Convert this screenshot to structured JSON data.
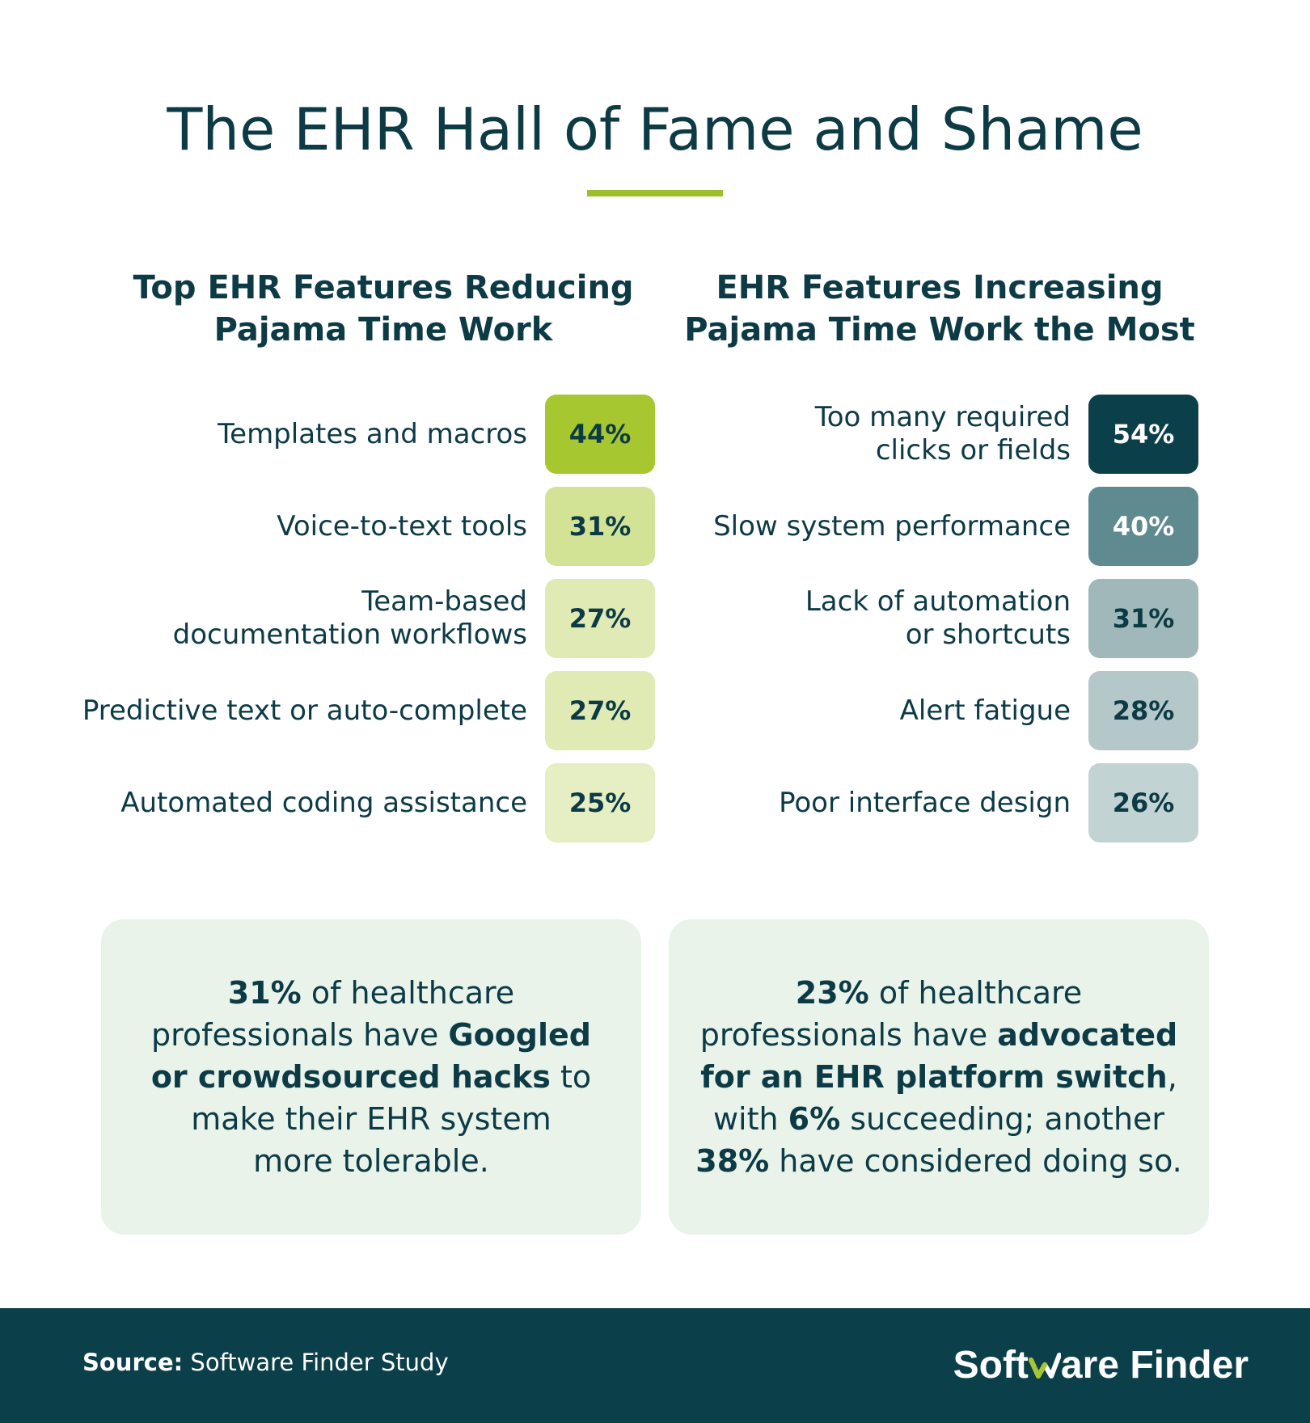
{
  "title": "The EHR Hall of Fame and Shame",
  "left_column": {
    "heading_lines": [
      "Top EHR Features Reducing",
      "Pajama Time Work"
    ],
    "items": [
      {
        "label_lines": [
          "Templates and macros"
        ],
        "value": "44%",
        "bg": "#a6c72f",
        "fg": "#0c3a45"
      },
      {
        "label_lines": [
          "Voice-to-text tools"
        ],
        "value": "31%",
        "bg": "#d3e395",
        "fg": "#0c3a45"
      },
      {
        "label_lines": [
          "Team-based",
          "documentation workflows"
        ],
        "value": "27%",
        "bg": "#dfeab4",
        "fg": "#0c3a45"
      },
      {
        "label_lines": [
          "Predictive text or auto-complete"
        ],
        "value": "27%",
        "bg": "#dfeab4",
        "fg": "#0c3a45"
      },
      {
        "label_lines": [
          "Automated coding assistance"
        ],
        "value": "25%",
        "bg": "#e6efc4",
        "fg": "#0c3a45"
      }
    ]
  },
  "right_column": {
    "heading_lines": [
      "EHR Features Increasing",
      "Pajama Time Work the Most"
    ],
    "items": [
      {
        "label_lines": [
          "Too many required",
          "clicks or fields"
        ],
        "value": "54%",
        "bg": "#0b3f4a",
        "fg": "#ffffff"
      },
      {
        "label_lines": [
          "Slow system performance"
        ],
        "value": "40%",
        "bg": "#5f8a8f",
        "fg": "#ffffff"
      },
      {
        "label_lines": [
          "Lack of automation",
          "or shortcuts"
        ],
        "value": "31%",
        "bg": "#a0b8ba",
        "fg": "#0c3a45"
      },
      {
        "label_lines": [
          "Alert fatigue"
        ],
        "value": "28%",
        "bg": "#b5c8c9",
        "fg": "#0c3a45"
      },
      {
        "label_lines": [
          "Poor interface design"
        ],
        "value": "26%",
        "bg": "#c2d3d4",
        "fg": "#0c3a45"
      }
    ]
  },
  "cards": {
    "left": {
      "bold_pct": "31%",
      "t1": " of healthcare",
      "t2": "professionals have ",
      "b2": "Googled",
      "b3": "or crowdsourced hacks",
      "t3": " to",
      "t4": "make their EHR system",
      "t5": "more tolerable."
    },
    "right": {
      "bold_pct": "23%",
      "t1": " of healthcare",
      "t2": "professionals have ",
      "b2": "advocated",
      "b3": "for an EHR platform switch",
      "t3": ",",
      "t4a": "with ",
      "b4": "6%",
      "t4b": " succeeding; another",
      "b5": "38%",
      "t5": " have considered doing so."
    }
  },
  "footer": {
    "source_label": "Source:",
    "source_text": " Software Finder Study",
    "logo_part1": "Soft",
    "logo_part2": "are Finder",
    "colors": {
      "footer_bg": "#0b3f4a",
      "logo_accent": "#a6c72f"
    }
  },
  "colors": {
    "primary_text": "#0c3a45",
    "accent_rule": "#9ebf2b",
    "card_bg": "#e9f3ea"
  }
}
